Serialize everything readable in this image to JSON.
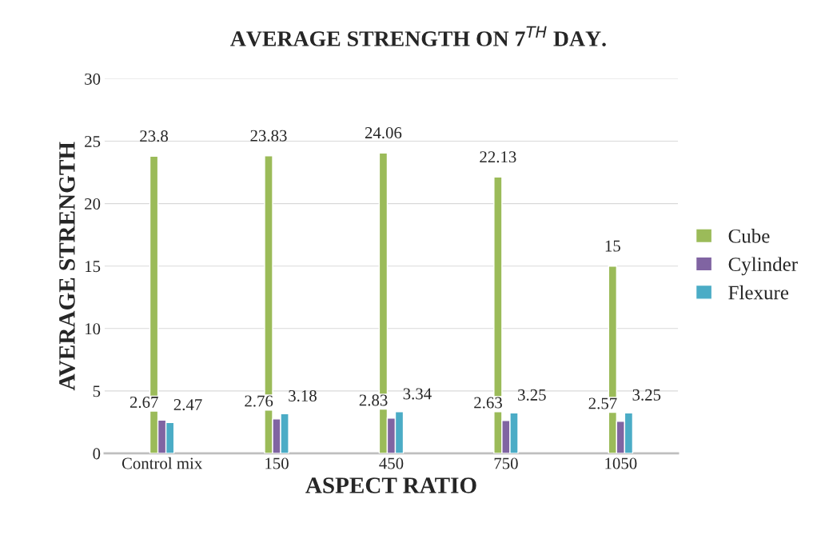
{
  "chart_data": {
    "type": "bar",
    "title": "AVERAGE STRENGTH ON 7$^{TH}$ DAY.",
    "xlabel": "ASPECT RATIO",
    "ylabel": "AVERAGE STRENGTH",
    "categories": [
      "Control mix",
      "150",
      "450",
      "750",
      "1050"
    ],
    "series": [
      {
        "name": "Cube",
        "color": "#9bbb59",
        "values": [
          23.8,
          23.83,
          24.06,
          22.13,
          15
        ]
      },
      {
        "name": "Cylinder",
        "color": "#8064a2",
        "values": [
          2.67,
          2.76,
          2.83,
          2.63,
          2.57
        ]
      },
      {
        "name": "Flexure",
        "color": "#4bacc6",
        "values": [
          2.47,
          3.18,
          3.34,
          3.25,
          3.25
        ]
      }
    ],
    "ylim": [
      0,
      30
    ],
    "yticks": [
      0,
      5,
      10,
      15,
      20,
      25,
      30
    ],
    "grid": "y",
    "legend": "right",
    "data_labels": true
  }
}
